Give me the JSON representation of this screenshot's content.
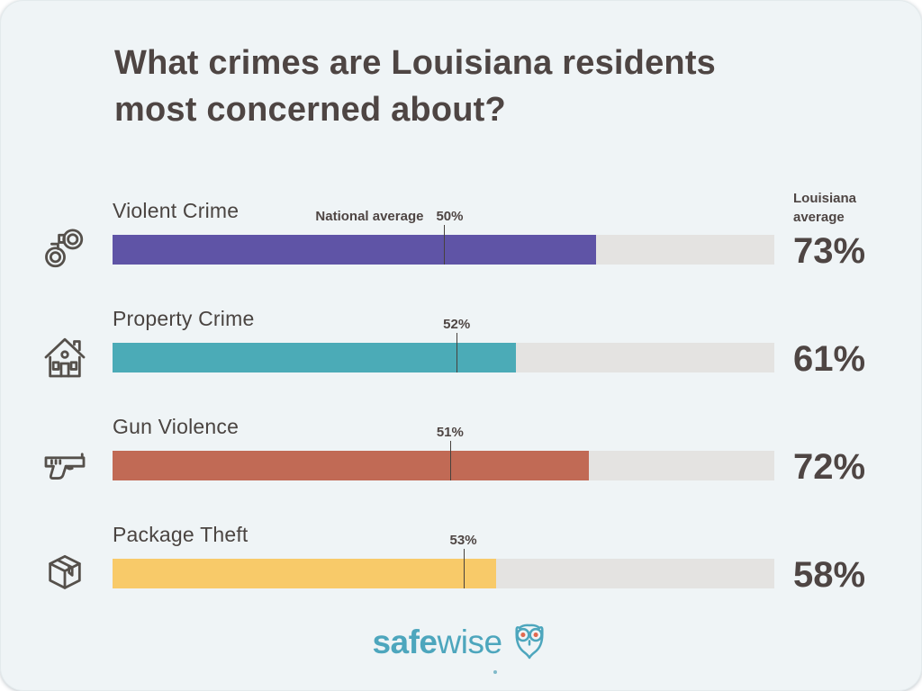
{
  "title": "What crimes are Louisiana residents most concerned about?",
  "labels": {
    "national_average": "National average",
    "louisiana_average": "Louisiana average"
  },
  "rows": [
    {
      "label": "Violent Crime",
      "icon": "handcuffs-icon",
      "value": 73,
      "value_label": "73%",
      "national": 50,
      "national_label": "50%",
      "color": "#5f54a6"
    },
    {
      "label": "Property Crime",
      "icon": "house-icon",
      "value": 61,
      "value_label": "61%",
      "national": 52,
      "national_label": "52%",
      "color": "#4babb7"
    },
    {
      "label": "Gun Violence",
      "icon": "gun-icon",
      "value": 72,
      "value_label": "72%",
      "national": 51,
      "national_label": "51%",
      "color": "#c16a55"
    },
    {
      "label": "Package Theft",
      "icon": "package-icon",
      "value": 58,
      "value_label": "58%",
      "national": 53,
      "national_label": "53%",
      "color": "#f8ca69"
    }
  ],
  "footer": {
    "brand_bold": "safe",
    "brand_light": "wise"
  },
  "colors": {
    "card_background": "#eff4f6",
    "text": "#4e4543",
    "track": "#e4e3e1",
    "tick": "#47413d",
    "brand_teal": "#4da6bd",
    "owl_eye_orange": "#e2694f"
  },
  "chart_data": {
    "type": "bar",
    "orientation": "horizontal",
    "title": "What crimes are Louisiana residents most concerned about?",
    "categories": [
      "Violent Crime",
      "Property Crime",
      "Gun Violence",
      "Package Theft"
    ],
    "series": [
      {
        "name": "Louisiana average",
        "values": [
          73,
          61,
          72,
          58
        ]
      },
      {
        "name": "National average",
        "values": [
          50,
          52,
          51,
          53
        ]
      }
    ],
    "xlim": [
      0,
      100
    ],
    "value_format": "percent",
    "bar_colors": [
      "#5f54a6",
      "#4babb7",
      "#c16a55",
      "#f8ca69"
    ],
    "grid": false,
    "legend_position": "inline-annotations"
  }
}
